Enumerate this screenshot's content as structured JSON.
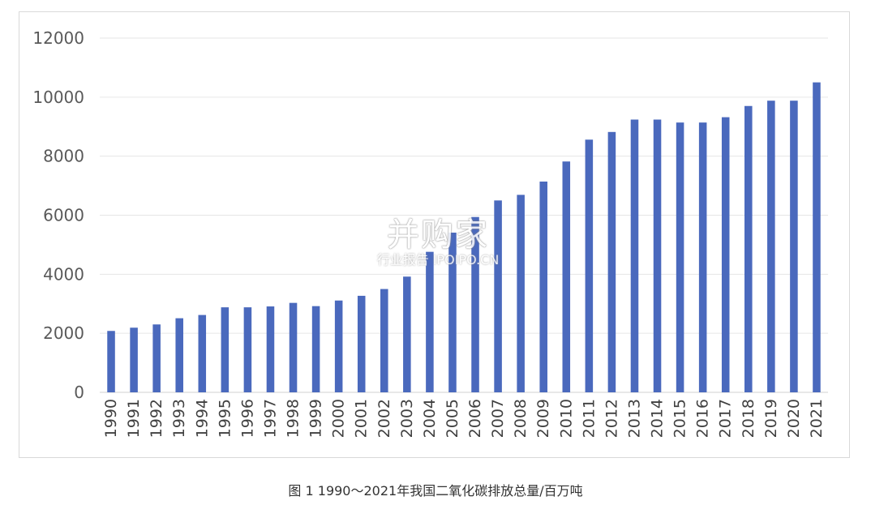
{
  "chart_data": {
    "type": "bar",
    "caption": "图 1  1990～2021年我国二氧化碳排放总量/百万吨",
    "categories": [
      "1990",
      "1991",
      "1992",
      "1993",
      "1994",
      "1995",
      "1996",
      "1997",
      "1998",
      "1999",
      "2000",
      "2001",
      "2002",
      "2003",
      "2004",
      "2005",
      "2006",
      "2007",
      "2008",
      "2009",
      "2010",
      "2011",
      "2012",
      "2013",
      "2014",
      "2015",
      "2016",
      "2017",
      "2018",
      "2019",
      "2020",
      "2021"
    ],
    "values": [
      2080,
      2190,
      2300,
      2510,
      2620,
      2880,
      2880,
      2910,
      3030,
      2920,
      3110,
      3270,
      3500,
      3920,
      4760,
      5410,
      5940,
      6500,
      6690,
      7140,
      7820,
      8560,
      8820,
      9240,
      9240,
      9140,
      9140,
      9320,
      9700,
      9880,
      9880,
      10500
    ],
    "ylim": [
      0,
      12000
    ],
    "yticks": [
      0,
      2000,
      4000,
      6000,
      8000,
      10000,
      12000
    ],
    "grid": true,
    "bar_color": "#4a69bd"
  },
  "watermark": {
    "brand": "并购家",
    "sub": "行业报告 IPOIPO.CN"
  }
}
